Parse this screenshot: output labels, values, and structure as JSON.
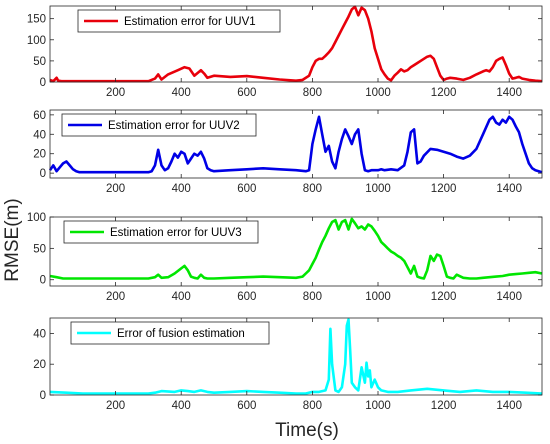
{
  "figure": {
    "ylabel": "RMSE(m)",
    "xlabel": "Time(s)"
  },
  "chart_data": [
    {
      "type": "line",
      "xlim": [
        0,
        1500
      ],
      "ylim": [
        0,
        180
      ],
      "xticks": [
        200,
        400,
        600,
        800,
        1000,
        1200,
        1400
      ],
      "yticks": [
        0,
        50,
        100,
        150
      ],
      "series": [
        {
          "name": "Estimation error for UUV1",
          "color": "#e8000b",
          "x": [
            0,
            10,
            20,
            25,
            35,
            60,
            100,
            200,
            300,
            320,
            330,
            340,
            360,
            390,
            410,
            425,
            440,
            460,
            470,
            480,
            500,
            550,
            600,
            650,
            700,
            750,
            770,
            790,
            800,
            810,
            820,
            830,
            840,
            850,
            860,
            870,
            880,
            890,
            900,
            910,
            920,
            930,
            940,
            950,
            960,
            970,
            980,
            990,
            1000,
            1010,
            1020,
            1030,
            1040,
            1050,
            1060,
            1070,
            1080,
            1090,
            1100,
            1110,
            1120,
            1130,
            1140,
            1150,
            1160,
            1170,
            1180,
            1190,
            1200,
            1210,
            1220,
            1240,
            1260,
            1280,
            1300,
            1320,
            1330,
            1340,
            1350,
            1360,
            1370,
            1380,
            1390,
            1400,
            1410,
            1420,
            1430,
            1440,
            1460,
            1480,
            1500
          ],
          "y": [
            5,
            2,
            10,
            3,
            2,
            2,
            2,
            2,
            2,
            8,
            18,
            6,
            18,
            28,
            35,
            32,
            15,
            28,
            20,
            10,
            15,
            12,
            14,
            10,
            6,
            3,
            5,
            15,
            35,
            50,
            55,
            55,
            62,
            70,
            80,
            95,
            110,
            125,
            140,
            155,
            172,
            178,
            158,
            176,
            170,
            150,
            120,
            80,
            55,
            30,
            18,
            8,
            4,
            15,
            22,
            30,
            25,
            28,
            35,
            40,
            45,
            50,
            55,
            60,
            62,
            55,
            35,
            15,
            5,
            8,
            10,
            8,
            5,
            10,
            18,
            25,
            28,
            25,
            35,
            50,
            55,
            58,
            40,
            20,
            8,
            10,
            12,
            8,
            5,
            3,
            2
          ]
        }
      ]
    },
    {
      "type": "line",
      "xlim": [
        0,
        1500
      ],
      "ylim": [
        -5,
        65
      ],
      "xticks": [
        200,
        400,
        600,
        800,
        1000,
        1200,
        1400
      ],
      "yticks": [
        0,
        20,
        40,
        60
      ],
      "series": [
        {
          "name": "Estimation error for UUV2",
          "color": "#0000e6",
          "x": [
            0,
            10,
            20,
            30,
            40,
            50,
            60,
            70,
            80,
            90,
            100,
            200,
            300,
            310,
            320,
            330,
            340,
            350,
            360,
            370,
            380,
            390,
            400,
            410,
            420,
            430,
            440,
            450,
            460,
            470,
            480,
            490,
            500,
            550,
            600,
            650,
            700,
            750,
            780,
            790,
            800,
            810,
            820,
            830,
            840,
            850,
            860,
            870,
            880,
            890,
            900,
            910,
            920,
            930,
            940,
            950,
            960,
            970,
            980,
            990,
            1000,
            1010,
            1020,
            1040,
            1060,
            1080,
            1090,
            1100,
            1110,
            1120,
            1130,
            1140,
            1160,
            1180,
            1200,
            1220,
            1240,
            1260,
            1280,
            1300,
            1320,
            1340,
            1350,
            1360,
            1370,
            1380,
            1390,
            1400,
            1410,
            1420,
            1430,
            1440,
            1450,
            1460,
            1470,
            1480,
            1490,
            1500
          ],
          "y": [
            3,
            8,
            2,
            6,
            10,
            12,
            8,
            4,
            2,
            1,
            1,
            1,
            1,
            2,
            8,
            24,
            8,
            3,
            5,
            12,
            20,
            16,
            22,
            20,
            10,
            15,
            20,
            18,
            22,
            15,
            5,
            3,
            2,
            3,
            4,
            5,
            4,
            3,
            2,
            3,
            30,
            45,
            58,
            40,
            22,
            28,
            12,
            5,
            22,
            35,
            45,
            38,
            30,
            40,
            45,
            20,
            3,
            2,
            3,
            3,
            3,
            4,
            3,
            4,
            3,
            8,
            22,
            42,
            45,
            10,
            12,
            18,
            25,
            24,
            22,
            20,
            17,
            15,
            18,
            25,
            40,
            55,
            58,
            52,
            50,
            55,
            52,
            58,
            55,
            48,
            42,
            30,
            20,
            10,
            5,
            3,
            2,
            1
          ]
        }
      ]
    },
    {
      "type": "line",
      "xlim": [
        0,
        1500
      ],
      "ylim": [
        -10,
        100
      ],
      "xticks": [
        200,
        400,
        600,
        800,
        1000,
        1200,
        1400
      ],
      "yticks": [
        0,
        50,
        100
      ],
      "series": [
        {
          "name": "Estimation error for UUV3",
          "color": "#00e600",
          "x": [
            0,
            20,
            40,
            100,
            200,
            300,
            320,
            330,
            340,
            360,
            380,
            400,
            410,
            420,
            430,
            440,
            450,
            460,
            470,
            480,
            500,
            550,
            600,
            650,
            700,
            750,
            770,
            780,
            790,
            800,
            810,
            820,
            830,
            840,
            850,
            860,
            870,
            880,
            890,
            900,
            910,
            920,
            930,
            940,
            950,
            960,
            970,
            980,
            990,
            1000,
            1010,
            1020,
            1030,
            1040,
            1050,
            1060,
            1070,
            1080,
            1090,
            1100,
            1110,
            1120,
            1130,
            1140,
            1150,
            1160,
            1170,
            1180,
            1190,
            1200,
            1210,
            1220,
            1230,
            1240,
            1260,
            1280,
            1300,
            1320,
            1340,
            1360,
            1380,
            1400,
            1420,
            1440,
            1460,
            1480,
            1500
          ],
          "y": [
            6,
            4,
            2,
            2,
            2,
            2,
            4,
            8,
            3,
            4,
            10,
            18,
            22,
            15,
            5,
            3,
            2,
            8,
            3,
            2,
            2,
            3,
            4,
            5,
            4,
            3,
            5,
            10,
            15,
            25,
            35,
            48,
            60,
            70,
            82,
            92,
            95,
            80,
            92,
            95,
            80,
            97,
            90,
            82,
            85,
            80,
            88,
            85,
            78,
            70,
            60,
            55,
            50,
            45,
            42,
            38,
            35,
            30,
            20,
            10,
            22,
            5,
            3,
            2,
            15,
            38,
            30,
            40,
            38,
            22,
            5,
            3,
            2,
            8,
            3,
            2,
            2,
            3,
            4,
            5,
            6,
            8,
            9,
            10,
            11,
            12,
            10
          ]
        }
      ]
    },
    {
      "type": "line",
      "xlim": [
        0,
        1500
      ],
      "ylim": [
        0,
        50
      ],
      "xticks": [
        200,
        400,
        600,
        800,
        1000,
        1200,
        1400
      ],
      "yticks": [
        0,
        20,
        40
      ],
      "series": [
        {
          "name": "Error of fusion estimation",
          "color": "#00ffff",
          "x": [
            0,
            50,
            100,
            200,
            300,
            320,
            340,
            380,
            400,
            420,
            440,
            460,
            480,
            500,
            550,
            600,
            650,
            700,
            750,
            780,
            800,
            820,
            840,
            850,
            855,
            860,
            870,
            880,
            890,
            900,
            905,
            910,
            915,
            920,
            930,
            940,
            950,
            960,
            965,
            970,
            975,
            980,
            990,
            1000,
            1010,
            1030,
            1060,
            1100,
            1150,
            1200,
            1250,
            1300,
            1350,
            1400,
            1450,
            1500
          ],
          "y": [
            2,
            1.5,
            1,
            1,
            1,
            1.5,
            2.5,
            2,
            3,
            2.5,
            2,
            3,
            2,
            1.5,
            2,
            2.5,
            2,
            1.5,
            1,
            1,
            2,
            2,
            3,
            10,
            43,
            20,
            3,
            2,
            5,
            20,
            45,
            49,
            30,
            8,
            5,
            3,
            18,
            8,
            21,
            12,
            16,
            5,
            10,
            5,
            3,
            2,
            2,
            3,
            4,
            3,
            2,
            3,
            2,
            2,
            1.5,
            1
          ]
        }
      ]
    }
  ]
}
